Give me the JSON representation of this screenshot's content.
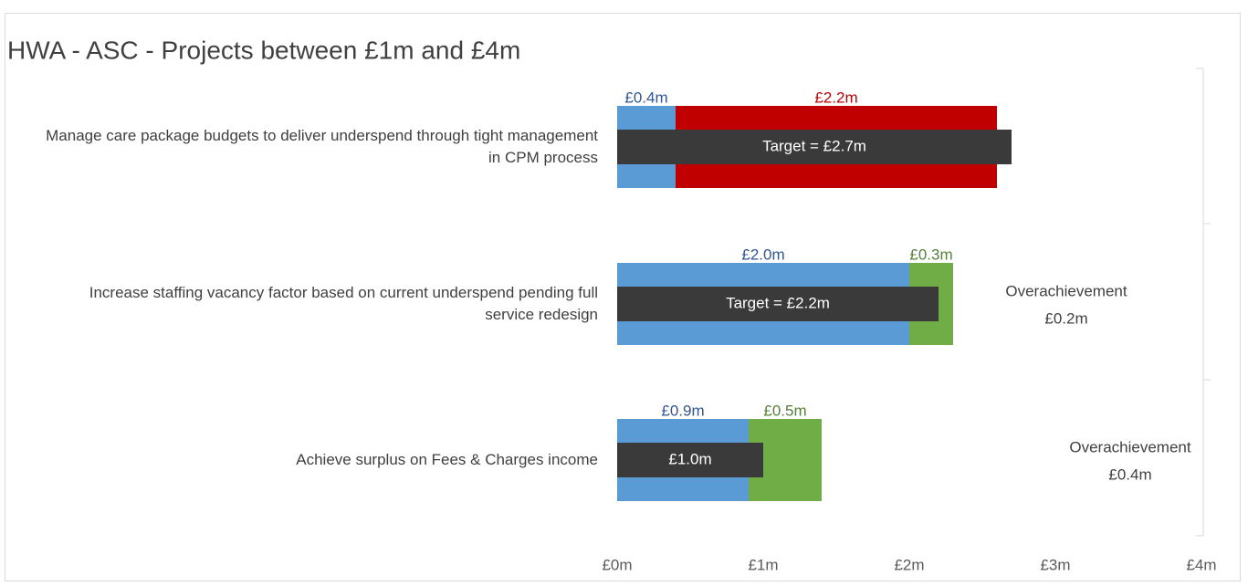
{
  "chart_data": {
    "type": "bar",
    "orientation": "horizontal",
    "stacked": true,
    "title": "HWA - ASC - Projects between £1m and £4m",
    "categories": [
      "Manage care package budgets to deliver underspend through tight management in CPM process",
      "Increase staffing vacancy factor based on current underspend pending full service redesign",
      "Achieve surplus on Fees & Charges income"
    ],
    "series": [
      {
        "color": "#5b9bd5",
        "label_color": "#2f5597",
        "values": [
          0.4,
          2.0,
          0.9
        ],
        "value_labels": [
          "£0.4m",
          "£2.0m",
          "£0.9m"
        ]
      },
      {
        "color": "#c00000",
        "label_color": "#c00000",
        "values": [
          2.2,
          null,
          null
        ],
        "value_labels": [
          "£2.2m",
          null,
          null
        ]
      },
      {
        "color": "#70ad47",
        "label_color": "#548235",
        "values": [
          null,
          0.3,
          0.5
        ],
        "value_labels": [
          null,
          "£0.3m",
          "£0.5m"
        ]
      }
    ],
    "targets": {
      "color": "#3a3a3a",
      "values": [
        2.7,
        2.2,
        1.0
      ],
      "value_labels": [
        "Target =  £2.7m",
        "Target =  £2.2m",
        "£1.0m"
      ]
    },
    "annotations": [
      null,
      [
        "Overachievement",
        "£0.2m"
      ],
      [
        "Overachievement",
        "£0.4m"
      ]
    ],
    "xlim": [
      0,
      4
    ],
    "xticks": [
      {
        "value": 0,
        "label": "£0m"
      },
      {
        "value": 1,
        "label": "£1m"
      },
      {
        "value": 2,
        "label": "£2m"
      },
      {
        "value": 3,
        "label": "£3m"
      },
      {
        "value": 4,
        "label": "£4m"
      }
    ]
  }
}
